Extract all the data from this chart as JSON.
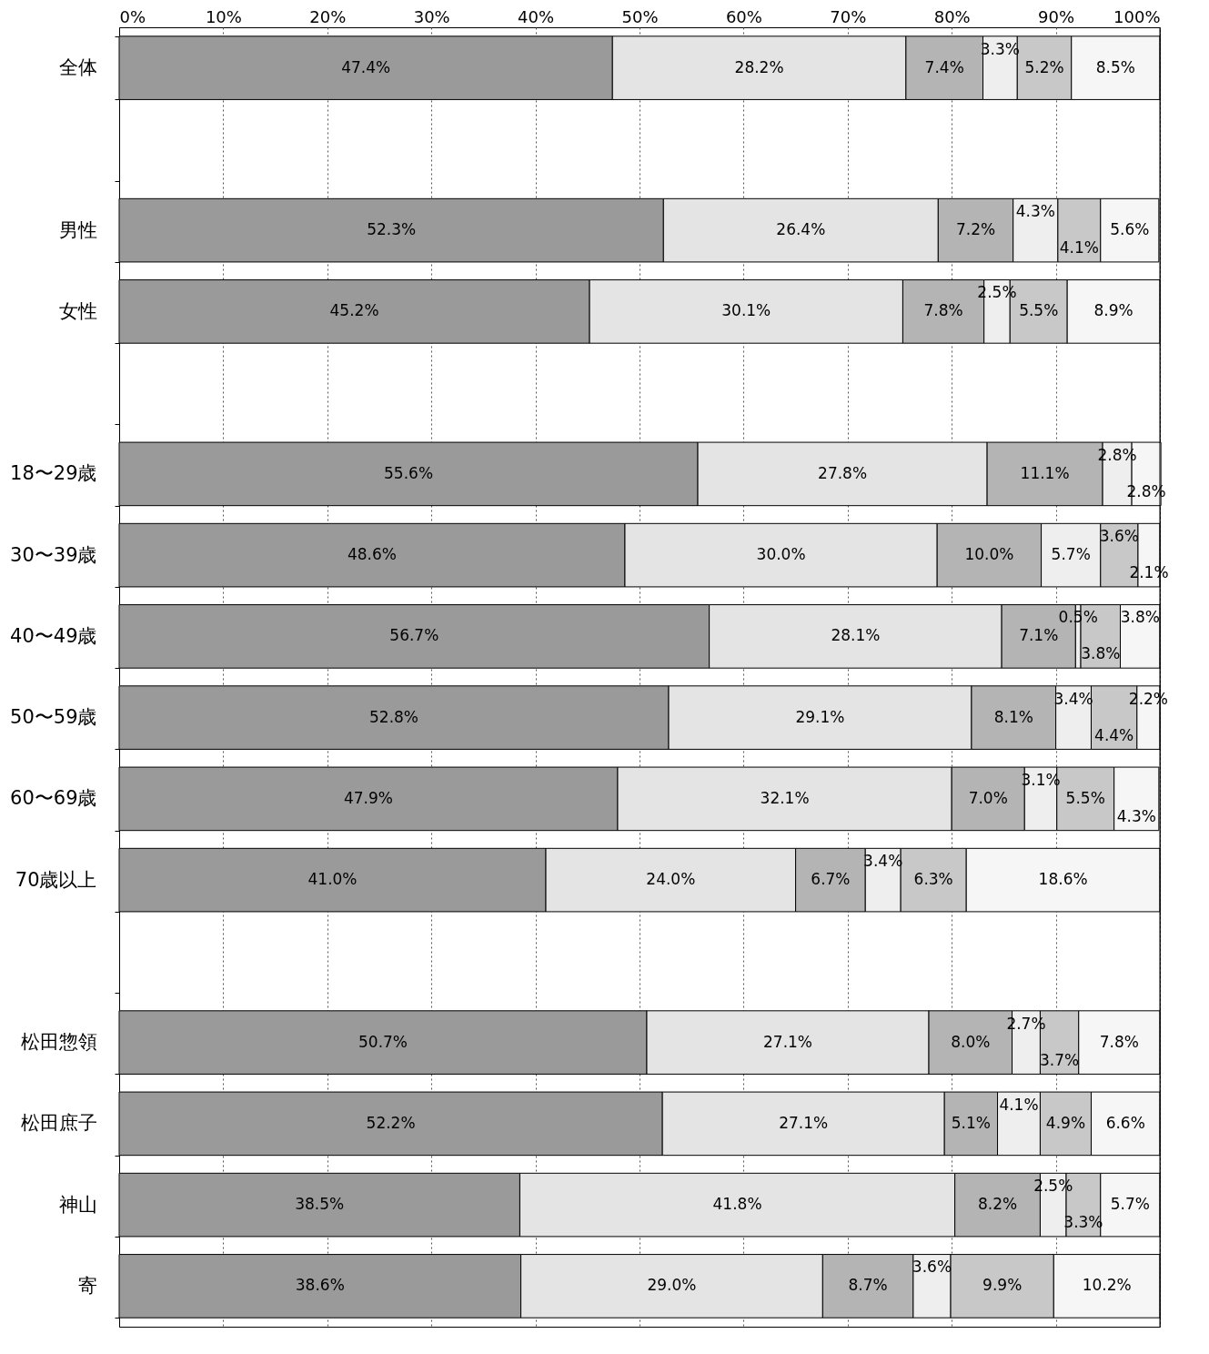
{
  "chart_data": {
    "type": "bar",
    "orientation": "horizontal",
    "stacked": true,
    "categories": [
      "全体",
      null,
      "男性",
      "女性",
      null,
      "18〜29歳",
      "30〜39歳",
      "40〜49歳",
      "50〜59歳",
      "60〜69歳",
      "70歳以上",
      null,
      "松田惣領",
      "松田庶子",
      "神山",
      "寄"
    ],
    "series": [
      {
        "color": "#9a9a9a",
        "values": [
          47.4,
          null,
          52.3,
          45.2,
          null,
          55.6,
          48.6,
          56.7,
          52.8,
          47.9,
          41.0,
          null,
          50.7,
          52.2,
          38.5,
          38.6
        ],
        "value_labels": [
          "47.4%",
          null,
          "52.3%",
          "45.2%",
          null,
          "55.6%",
          "48.6%",
          "56.7%",
          "52.8%",
          "47.9%",
          "41.0%",
          null,
          "50.7%",
          "52.2%",
          "38.5%",
          "38.6%"
        ]
      },
      {
        "color": "#e4e4e4",
        "values": [
          28.2,
          null,
          26.4,
          30.1,
          null,
          27.8,
          30.0,
          28.1,
          29.1,
          32.1,
          24.0,
          null,
          27.1,
          27.1,
          41.8,
          29.0
        ],
        "value_labels": [
          "28.2%",
          null,
          "26.4%",
          "30.1%",
          null,
          "27.8%",
          "30.0%",
          "28.1%",
          "29.1%",
          "32.1%",
          "24.0%",
          null,
          "27.1%",
          "27.1%",
          "41.8%",
          "29.0%"
        ]
      },
      {
        "color": "#b4b4b4",
        "values": [
          7.4,
          null,
          7.2,
          7.8,
          null,
          11.1,
          10.0,
          7.1,
          8.1,
          7.0,
          6.7,
          null,
          8.0,
          5.1,
          8.2,
          8.7
        ],
        "value_labels": [
          "7.4%",
          null,
          "7.2%",
          "7.8%",
          null,
          "11.1%",
          "10.0%",
          "7.1%",
          "8.1%",
          "7.0%",
          "6.7%",
          null,
          "8.0%",
          "5.1%",
          "8.2%",
          "8.7%"
        ]
      },
      {
        "color": "#eeeeee",
        "values": [
          3.3,
          null,
          4.3,
          2.5,
          null,
          2.8,
          5.7,
          0.5,
          3.4,
          3.1,
          3.4,
          null,
          2.7,
          4.1,
          2.5,
          3.6
        ],
        "value_labels": [
          "3.3%",
          null,
          "4.3%",
          "2.5%",
          null,
          "2.8%",
          "5.7%",
          "0.5%",
          "3.4%",
          "3.1%",
          "3.4%",
          null,
          "2.7%",
          "4.1%",
          "2.5%",
          "3.6%"
        ]
      },
      {
        "color": "#c8c8c8",
        "values": [
          5.2,
          null,
          4.1,
          5.5,
          null,
          null,
          3.6,
          3.8,
          4.4,
          5.5,
          6.3,
          null,
          3.7,
          4.9,
          3.3,
          9.9
        ],
        "value_labels": [
          "5.2%",
          null,
          "4.1%",
          "5.5%",
          null,
          null,
          "3.6%",
          "3.8%",
          "4.4%",
          "5.5%",
          "6.3%",
          null,
          "3.7%",
          "4.9%",
          "3.3%",
          "9.9%"
        ]
      },
      {
        "color": "#f6f6f6",
        "values": [
          8.5,
          null,
          5.6,
          8.9,
          null,
          2.8,
          2.1,
          3.8,
          2.2,
          4.3,
          18.6,
          null,
          7.8,
          6.6,
          5.7,
          10.2
        ],
        "value_labels": [
          "8.5%",
          null,
          "5.6%",
          "8.9%",
          null,
          "2.8%",
          "2.1%",
          "3.8%",
          "2.2%",
          "4.3%",
          "18.6%",
          null,
          "7.8%",
          "6.6%",
          "5.7%",
          "10.2%"
        ]
      }
    ],
    "xlim": [
      0,
      100
    ],
    "xticks": [
      {
        "value": 0,
        "label": "0%"
      },
      {
        "value": 10,
        "label": "10%"
      },
      {
        "value": 20,
        "label": "20%"
      },
      {
        "value": 30,
        "label": "30%"
      },
      {
        "value": 40,
        "label": "40%"
      },
      {
        "value": 50,
        "label": "50%"
      },
      {
        "value": 60,
        "label": "60%"
      },
      {
        "value": 70,
        "label": "70%"
      },
      {
        "value": 80,
        "label": "80%"
      },
      {
        "value": 90,
        "label": "90%"
      },
      {
        "value": 100,
        "label": "100%"
      }
    ],
    "grid": "x"
  }
}
